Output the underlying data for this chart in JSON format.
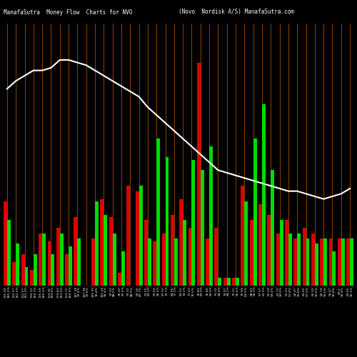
{
  "title_left": "ManafaSutra  Money Flow  Charts for NVO",
  "title_right": "(Novo  Nordisk A/S) ManafaSutra.com",
  "background_color": "#000000",
  "bar_color_green": "#00dd00",
  "bar_color_red": "#dd0000",
  "line_color": "#ffffff",
  "grid_color": "#8B4500",
  "n_bars": 40,
  "bar_data_red": [
    0.32,
    0.09,
    0.12,
    0.06,
    0.2,
    0.17,
    0.22,
    0.12,
    0.26,
    0.0,
    0.18,
    0.33,
    0.26,
    0.05,
    0.38,
    0.36,
    0.25,
    0.17,
    0.2,
    0.27,
    0.33,
    0.22,
    0.85,
    0.18,
    0.22,
    0.03,
    0.03,
    0.38,
    0.25,
    0.31,
    0.27,
    0.2,
    0.25,
    0.18,
    0.22,
    0.2,
    0.18,
    0.18,
    0.18,
    0.18
  ],
  "bar_data_green": [
    0.25,
    0.16,
    0.07,
    0.12,
    0.2,
    0.12,
    0.2,
    0.15,
    0.18,
    0.0,
    0.32,
    0.27,
    0.2,
    0.13,
    0.0,
    0.38,
    0.18,
    0.56,
    0.49,
    0.18,
    0.25,
    0.48,
    0.44,
    0.53,
    0.03,
    0.03,
    0.03,
    0.32,
    0.56,
    0.69,
    0.44,
    0.25,
    0.2,
    0.2,
    0.18,
    0.16,
    0.18,
    0.13,
    0.18,
    0.18
  ],
  "line_data": [
    0.75,
    0.78,
    0.8,
    0.82,
    0.82,
    0.83,
    0.86,
    0.86,
    0.85,
    0.84,
    0.82,
    0.8,
    0.78,
    0.76,
    0.74,
    0.72,
    0.68,
    0.65,
    0.62,
    0.59,
    0.56,
    0.53,
    0.5,
    0.47,
    0.44,
    0.43,
    0.42,
    0.41,
    0.4,
    0.39,
    0.38,
    0.37,
    0.36,
    0.36,
    0.35,
    0.34,
    0.33,
    0.34,
    0.35,
    0.37
  ],
  "x_labels": [
    "115.39\n105.5%",
    "112.57\n102.5%",
    "112.27\n102.2%",
    "116.13\n105.7%",
    "115.59\n105.2%",
    "114.26\n104.0%",
    "113.64\n103.4%",
    "113.72\n103.5%",
    "107.28\n97.6%",
    "107.28\n97.6%",
    "105.97\n96.4%",
    "101.55\n92.4%",
    "97.33\n88.5%",
    "96.32\n87.6%",
    "97.22\n88.5%",
    "94.16\n85.7%",
    "91.55\n83.3%",
    "90.60\n82.4%",
    "87.55\n79.7%",
    "84.96\n77.3%",
    "81.52\n74.2%",
    "77.43\n70.5%",
    "76.83\n69.9%",
    "76.80\n69.9%",
    "75.12\n68.4%",
    "74.97\n68.2%",
    "73.21\n66.6%",
    "70.94\n64.5%",
    "68.43\n62.3%",
    "67.07\n61.0%",
    "65.24\n59.4%",
    "63.72\n58.0%",
    "63.51\n57.8%",
    "62.47\n56.8%",
    "62.65\n57.0%",
    "62.23\n56.6%",
    "62.19\n56.6%",
    "62.47\n56.8%",
    "62.0\n56.4%",
    "61.65\n56.1%"
  ]
}
